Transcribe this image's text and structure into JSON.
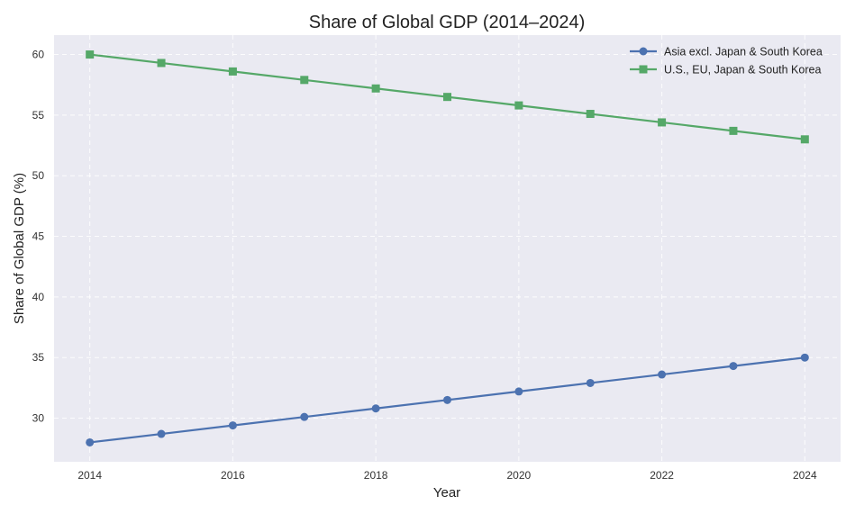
{
  "chart_data": {
    "type": "line",
    "title": "Share of Global GDP (2014–2024)",
    "xlabel": "Year",
    "ylabel": "Share of Global GDP (%)",
    "x": [
      2014,
      2015,
      2016,
      2017,
      2018,
      2019,
      2020,
      2021,
      2022,
      2023,
      2024
    ],
    "x_ticks": [
      2014,
      2016,
      2018,
      2020,
      2022,
      2024
    ],
    "y_ticks": [
      30,
      35,
      40,
      45,
      50,
      55,
      60
    ],
    "xlim": [
      2013.5,
      2024.5
    ],
    "ylim": [
      26.4,
      61.6
    ],
    "grid": true,
    "legend_position": "top-right",
    "series": [
      {
        "name": "Asia excl. Japan & South Korea",
        "color": "#4c72b0",
        "marker": "circle",
        "values": [
          28.0,
          28.7,
          29.4,
          30.1,
          30.8,
          31.5,
          32.2,
          32.9,
          33.6,
          34.3,
          35.0
        ]
      },
      {
        "name": "U.S., EU, Japan & South Korea",
        "color": "#55a868",
        "marker": "square",
        "values": [
          60.0,
          59.3,
          58.6,
          57.9,
          57.2,
          56.5,
          55.8,
          55.1,
          54.4,
          53.7,
          53.0
        ]
      }
    ]
  }
}
